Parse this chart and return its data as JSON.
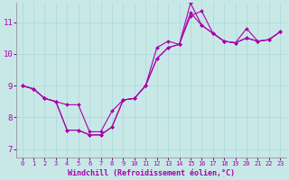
{
  "title": "",
  "xlabel": "Windchill (Refroidissement éolien,°C)",
  "ylabel": "",
  "background_color": "#c8e8e8",
  "line_color": "#aa00aa",
  "xlim": [
    -0.5,
    23.5
  ],
  "ylim": [
    6.75,
    11.6
  ],
  "xticks": [
    0,
    1,
    2,
    3,
    4,
    5,
    6,
    7,
    8,
    9,
    10,
    11,
    12,
    13,
    14,
    15,
    16,
    17,
    18,
    19,
    20,
    21,
    22,
    23
  ],
  "yticks": [
    7,
    8,
    9,
    10,
    11
  ],
  "series": [
    [
      9.0,
      8.9,
      8.6,
      8.5,
      7.6,
      7.6,
      7.45,
      7.45,
      7.7,
      8.55,
      8.6,
      9.0,
      10.2,
      10.4,
      10.3,
      11.3,
      10.9,
      10.65,
      10.4,
      10.35,
      10.5,
      10.4,
      10.45,
      10.7
    ],
    [
      9.0,
      8.9,
      8.6,
      8.5,
      7.6,
      7.6,
      7.45,
      7.45,
      7.7,
      8.55,
      8.6,
      9.0,
      9.85,
      10.2,
      10.3,
      11.6,
      10.9,
      10.65,
      10.4,
      10.35,
      10.5,
      10.4,
      10.45,
      10.7
    ],
    [
      9.0,
      8.9,
      8.6,
      8.5,
      8.4,
      8.4,
      7.55,
      7.55,
      8.2,
      8.55,
      8.6,
      9.0,
      9.85,
      10.2,
      10.3,
      11.2,
      11.35,
      10.65,
      10.4,
      10.35,
      10.8,
      10.4,
      10.45,
      10.7
    ]
  ],
  "figwidth": 3.2,
  "figheight": 2.0,
  "dpi": 100
}
